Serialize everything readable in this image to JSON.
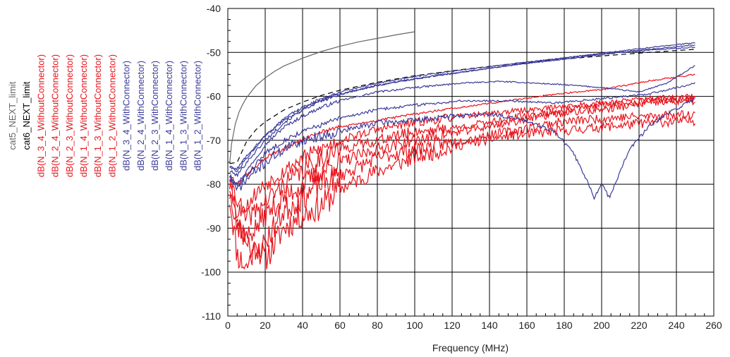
{
  "chart_data": {
    "type": "line",
    "title": "",
    "xlabel": "Frequency (MHz)",
    "ylabel": "",
    "xlim": [
      0,
      260
    ],
    "ylim": [
      -110,
      -40
    ],
    "grid": true,
    "legend_placement": "left (rotated vertical)",
    "x_ticks": [
      "0",
      "20",
      "40",
      "60",
      "80",
      "100",
      "120",
      "140",
      "160",
      "180",
      "200",
      "220",
      "240",
      "260"
    ],
    "y_ticks": [
      "-40",
      "-50",
      "-60",
      "-70",
      "-80",
      "-90",
      "-100",
      "-110"
    ],
    "colors": {
      "limit_cat5": "#666666",
      "limit_cat6": "#000000",
      "without": "#e8141c",
      "with": "#3b3b9a"
    },
    "series": [
      {
        "name": "cat5_NEXT_limit",
        "color": "#666666",
        "dash": "none",
        "x": [
          1,
          2,
          4,
          6,
          8,
          10,
          15,
          20,
          25,
          30,
          40,
          50,
          60,
          70,
          80,
          90,
          100
        ],
        "y": [
          -75.3,
          -70.8,
          -66.3,
          -63.6,
          -61.8,
          -60.3,
          -57.6,
          -55.8,
          -54.3,
          -53.1,
          -51.3,
          -49.8,
          -48.6,
          -47.6,
          -46.8,
          -46.0,
          -45.3
        ]
      },
      {
        "name": "cat6_NEXT_limit",
        "color": "#000000",
        "dash": "7,5",
        "x": [
          1,
          5,
          10,
          15,
          20,
          30,
          40,
          50,
          60,
          80,
          100,
          125,
          150,
          175,
          200,
          225,
          250
        ],
        "y": [
          -75.3,
          -75.0,
          -70.3,
          -67.6,
          -65.8,
          -63.1,
          -61.3,
          -59.8,
          -58.6,
          -56.8,
          -55.3,
          -53.9,
          -52.7,
          -51.7,
          -50.8,
          -50.0,
          -49.3
        ]
      },
      {
        "name": "dB(N_3_4_WithoutConnector)",
        "color": "#e8141c",
        "jitter": 3.2,
        "seed": 11,
        "x": [
          1,
          5,
          10,
          15,
          20,
          30,
          40,
          50,
          60,
          80,
          100,
          125,
          150,
          175,
          200,
          225,
          250
        ],
        "y": [
          -83,
          -96,
          -99,
          -94,
          -97,
          -90,
          -87,
          -85,
          -81,
          -77,
          -74,
          -71,
          -69,
          -68,
          -67,
          -66,
          -65.5
        ]
      },
      {
        "name": "dB(N_2_4_WithoutConnector)",
        "color": "#e8141c",
        "jitter": 3.0,
        "seed": 23,
        "x": [
          1,
          5,
          10,
          15,
          20,
          30,
          40,
          50,
          60,
          80,
          100,
          125,
          150,
          175,
          200,
          225,
          250
        ],
        "y": [
          -80,
          -90,
          -92,
          -96,
          -93,
          -86,
          -83,
          -80,
          -78,
          -74,
          -72,
          -70,
          -68,
          -66,
          -65,
          -64.5,
          -64
        ]
      },
      {
        "name": "dB(N_2_3_WithoutConnector)",
        "color": "#e8141c",
        "jitter": 2.6,
        "seed": 37,
        "x": [
          1,
          5,
          10,
          15,
          20,
          30,
          40,
          50,
          60,
          80,
          100,
          125,
          150,
          175,
          200,
          225,
          250
        ],
        "y": [
          -82,
          -88,
          -92,
          -90,
          -87,
          -83,
          -80,
          -77,
          -75,
          -72,
          -70,
          -68,
          -66,
          -64,
          -63,
          -61.5,
          -61
        ]
      },
      {
        "name": "dB(N_1_4_WithoutConnector)",
        "color": "#e8141c",
        "jitter": 2.3,
        "seed": 41,
        "x": [
          1,
          5,
          10,
          15,
          20,
          30,
          40,
          50,
          60,
          80,
          100,
          125,
          150,
          175,
          200,
          225,
          250
        ],
        "y": [
          -80,
          -86,
          -88,
          -86,
          -84,
          -80,
          -77,
          -74,
          -72,
          -70,
          -68,
          -67,
          -65,
          -63.5,
          -62,
          -61,
          -60.5
        ]
      },
      {
        "name": "dB(N_1_3_WithoutConnector)",
        "color": "#e8141c",
        "jitter": 1.8,
        "seed": 53,
        "x": [
          1,
          5,
          10,
          15,
          20,
          30,
          40,
          50,
          60,
          80,
          100,
          125,
          150,
          175,
          200,
          225,
          250
        ],
        "y": [
          -78,
          -84,
          -85,
          -82,
          -80,
          -77,
          -74,
          -72,
          -70,
          -67.5,
          -66,
          -64.5,
          -63.5,
          -62.5,
          -61.5,
          -60.5,
          -60
        ]
      },
      {
        "name": "dB(N_1_2_WithoutConnector)",
        "color": "#e8141c",
        "jitter": 0.5,
        "seed": 61,
        "x": [
          1,
          5,
          10,
          20,
          30,
          40,
          50,
          60,
          80,
          100,
          125,
          150,
          175,
          200,
          225,
          250
        ],
        "y": [
          -78,
          -80,
          -78,
          -74,
          -72,
          -70,
          -68,
          -67,
          -65.5,
          -64,
          -62.5,
          -61,
          -59.5,
          -58.5,
          -56.5,
          -55
        ]
      },
      {
        "name": "dB(N_3_4_WithConnector)",
        "color": "#3b3b9a",
        "jitter": 1.2,
        "seed": 71,
        "x": [
          1,
          5,
          10,
          20,
          30,
          40,
          50,
          60,
          80,
          100,
          120,
          140,
          160,
          175,
          185,
          192,
          196,
          200,
          204,
          208,
          215,
          225,
          235,
          250
        ],
        "y": [
          -78,
          -81,
          -79,
          -75,
          -72,
          -70,
          -69,
          -68,
          -66,
          -65.5,
          -64.5,
          -64,
          -65.5,
          -68,
          -73,
          -79,
          -83,
          -80,
          -83,
          -79,
          -72,
          -67,
          -64,
          -60.5
        ]
      },
      {
        "name": "dB(N_2_4_WithConnector)",
        "color": "#3b3b9a",
        "jitter": 0.6,
        "seed": 83,
        "x": [
          1,
          5,
          10,
          20,
          30,
          40,
          50,
          60,
          80,
          100,
          125,
          150,
          175,
          200,
          225,
          250
        ],
        "y": [
          -79,
          -81,
          -78,
          -73,
          -70,
          -68,
          -66.5,
          -65,
          -63,
          -62,
          -61,
          -61,
          -61.5,
          -60.5,
          -59.5,
          -57
        ]
      },
      {
        "name": "dB(N_2_3_WithConnector)",
        "color": "#3b3b9a",
        "jitter": 0.4,
        "seed": 97,
        "x": [
          1,
          5,
          10,
          20,
          30,
          40,
          50,
          60,
          80,
          100,
          125,
          145,
          165,
          185,
          200,
          220,
          235,
          250
        ],
        "y": [
          -78,
          -80,
          -77,
          -71,
          -67,
          -64.5,
          -62.5,
          -61,
          -59,
          -58,
          -57,
          -56.6,
          -57,
          -57.5,
          -58,
          -59,
          -57,
          -53
        ]
      },
      {
        "name": "dB(N_1_4_WithConnector)",
        "color": "#3b3b9a",
        "jitter": 0.4,
        "seed": 101,
        "x": [
          1,
          5,
          10,
          20,
          30,
          40,
          50,
          60,
          80,
          100,
          125,
          150,
          175,
          200,
          225,
          250
        ],
        "y": [
          -77,
          -78,
          -75,
          -70,
          -66,
          -63,
          -61,
          -59.5,
          -57.5,
          -56,
          -54.5,
          -53,
          -51.5,
          -50.3,
          -49.5,
          -48.8
        ]
      },
      {
        "name": "dB(N_1_3_WithConnector)",
        "color": "#3b3b9a",
        "jitter": 0.3,
        "seed": 113,
        "x": [
          1,
          5,
          10,
          20,
          30,
          40,
          50,
          60,
          80,
          100,
          125,
          150,
          175,
          200,
          225,
          250
        ],
        "y": [
          -76,
          -77,
          -74,
          -69,
          -65.5,
          -63,
          -61,
          -59.5,
          -57.5,
          -56,
          -54.5,
          -53,
          -51.8,
          -50.5,
          -49.3,
          -48.3
        ]
      },
      {
        "name": "dB(N_1_2_WithConnector)",
        "color": "#3b3b9a",
        "jitter": 0.3,
        "seed": 127,
        "x": [
          1,
          5,
          10,
          20,
          30,
          40,
          50,
          60,
          80,
          100,
          125,
          150,
          175,
          200,
          225,
          250
        ],
        "y": [
          -76,
          -76.5,
          -73.5,
          -69,
          -65,
          -62.5,
          -60.5,
          -59,
          -57,
          -55.5,
          -54,
          -52.7,
          -51.5,
          -50.2,
          -48.9,
          -47.8
        ]
      }
    ]
  }
}
